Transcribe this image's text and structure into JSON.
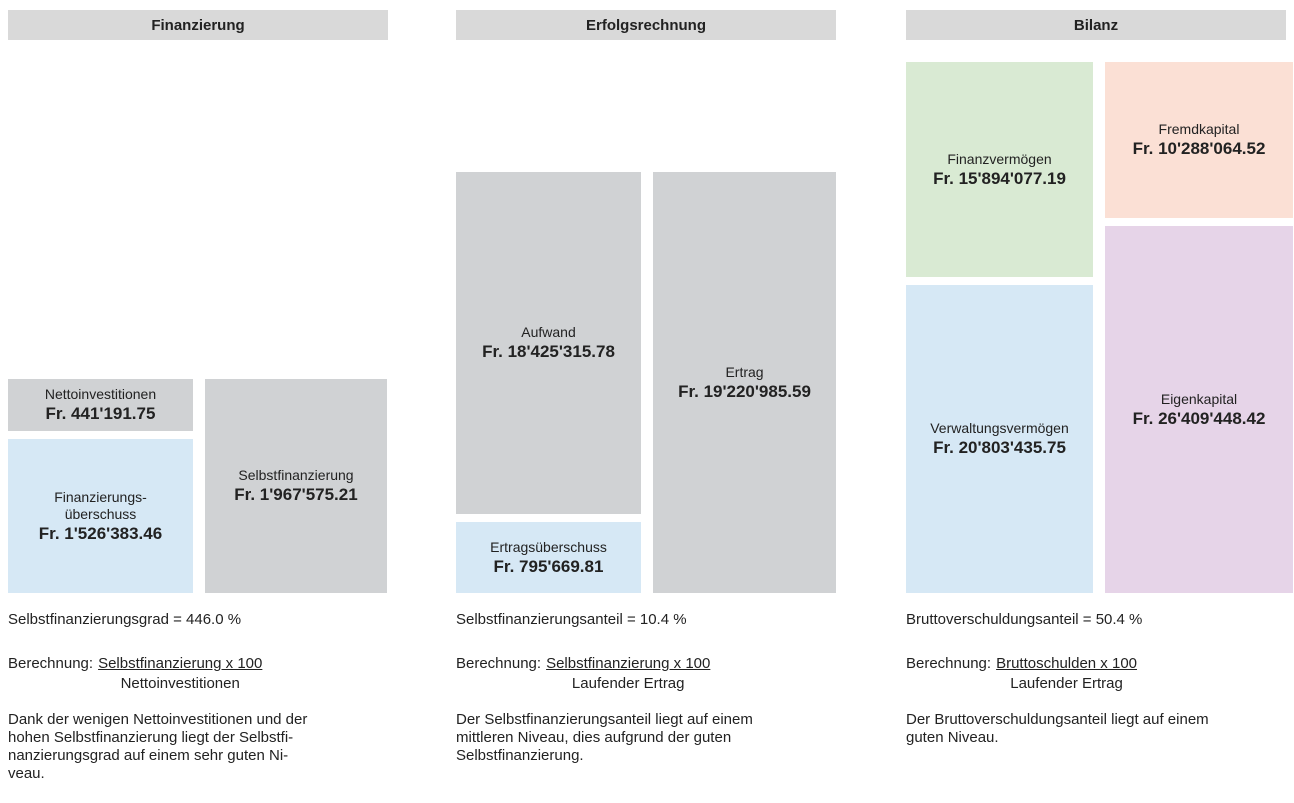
{
  "columns": [
    {
      "title": "Finanzierung",
      "boxes": [
        {
          "label": [
            "Nettoinvestitionen"
          ],
          "amount": "Fr. 441'191.75"
        },
        {
          "label": [
            "Finanzierungs-",
            "überschuss"
          ],
          "amount": "Fr. 1'526'383.46"
        },
        {
          "label": [
            "Selbstfinanzierung"
          ],
          "amount": "Fr. 1'967'575.21"
        }
      ],
      "ratio": "Selbstfinanzierungsgrad = 446.0 %",
      "calc": {
        "prefix": "Berechnung:",
        "numerator": "Selbstfinanzierung x 100",
        "denominator": "Nettoinvestitionen"
      },
      "text": [
        "Dank der wenigen Nettoinvestitionen und der",
        "hohen Selbstfinanzierung liegt der Selbstfi-",
        "nanzierungsgrad auf einem sehr guten Ni-",
        "veau."
      ]
    },
    {
      "title": "Erfolgsrechnung",
      "boxes": [
        {
          "label": [
            "Aufwand"
          ],
          "amount": "Fr. 18'425'315.78"
        },
        {
          "label": [
            "Ertragsüberschuss"
          ],
          "amount": "Fr. 795'669.81"
        },
        {
          "label": [
            "Ertrag"
          ],
          "amount": "Fr. 19'220'985.59"
        }
      ],
      "ratio": "Selbstfinanzierungsanteil = 10.4 %",
      "calc": {
        "prefix": "Berechnung:",
        "numerator": "Selbstfinanzierung x 100",
        "denominator": "Laufender Ertrag"
      },
      "text": [
        "Der Selbstfinanzierungsanteil liegt auf einem",
        "mittleren Niveau, dies aufgrund der guten",
        "Selbstfinanzierung."
      ]
    },
    {
      "title": "Bilanz",
      "boxes": [
        {
          "label": [
            "Finanzvermögen"
          ],
          "amount": "Fr. 15'894'077.19"
        },
        {
          "label": [
            "Verwaltungsvermögen"
          ],
          "amount": "Fr. 20'803'435.75"
        },
        {
          "label": [
            "Fremdkapital"
          ],
          "amount": "Fr. 10'288'064.52"
        },
        {
          "label": [
            "Eigenkapital"
          ],
          "amount": "Fr. 26'409'448.42"
        }
      ],
      "ratio": "Bruttoverschuldungsanteil = 50.4 %",
      "calc": {
        "prefix": "Berechnung:",
        "numerator": "Bruttoschulden x 100",
        "denominator": "Laufender Ertrag"
      },
      "text": [
        "Der Bruttoverschuldungsanteil liegt auf einem",
        "guten Niveau."
      ]
    }
  ]
}
